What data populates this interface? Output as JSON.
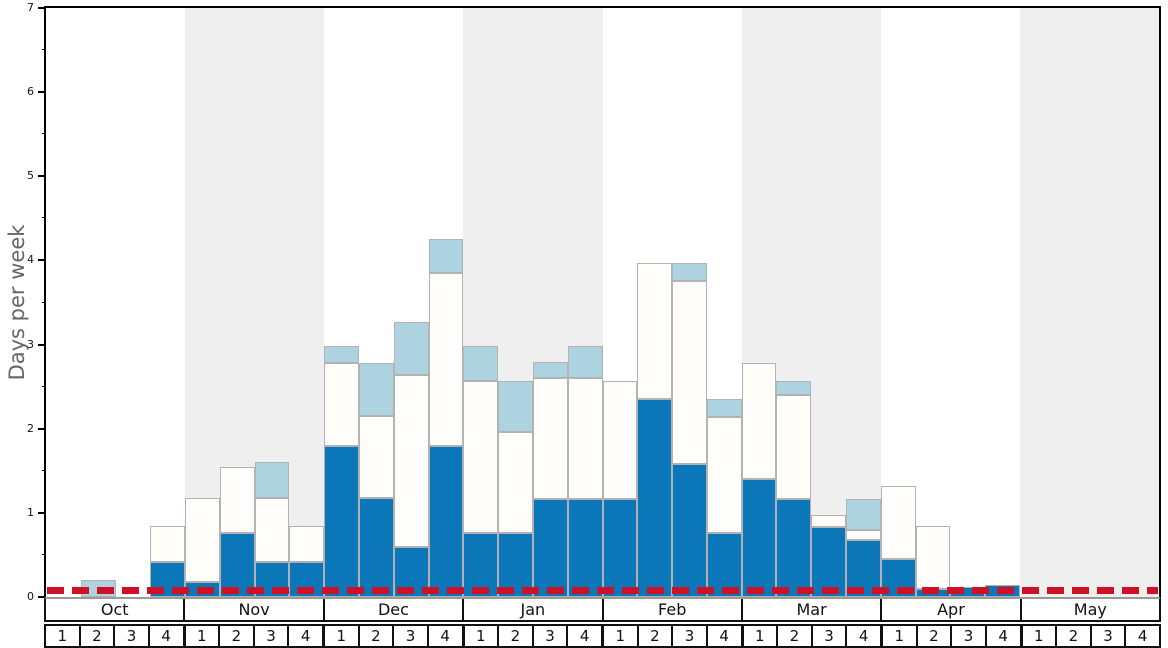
{
  "y_axis": {
    "label": "Days per week",
    "ticks": [
      "0",
      "1",
      "2",
      "3",
      "4",
      "5",
      "6",
      "7"
    ],
    "min": 0,
    "max": 7,
    "minor_tick_step": 0.5
  },
  "months": [
    {
      "label": "Oct",
      "shaded": false,
      "weeks": [
        "1",
        "2",
        "3",
        "4"
      ]
    },
    {
      "label": "Nov",
      "shaded": true,
      "weeks": [
        "1",
        "2",
        "3",
        "4"
      ]
    },
    {
      "label": "Dec",
      "shaded": false,
      "weeks": [
        "1",
        "2",
        "3",
        "4"
      ]
    },
    {
      "label": "Jan",
      "shaded": true,
      "weeks": [
        "1",
        "2",
        "3",
        "4"
      ]
    },
    {
      "label": "Feb",
      "shaded": false,
      "weeks": [
        "1",
        "2",
        "3",
        "4"
      ]
    },
    {
      "label": "Mar",
      "shaded": true,
      "weeks": [
        "1",
        "2",
        "3",
        "4"
      ]
    },
    {
      "label": "Apr",
      "shaded": false,
      "weeks": [
        "1",
        "2",
        "3",
        "4"
      ]
    },
    {
      "label": "May",
      "shaded": true,
      "weeks": [
        "1",
        "2",
        "3",
        "4"
      ]
    }
  ],
  "colors": {
    "dark_blue": "#0b76b8",
    "light_blue": "#aed3e0",
    "bar_white": "#fffefa",
    "band_gray": "#efefef",
    "bar_border": "#b2b2b2",
    "reference_red": "#ce1126",
    "axis_title_gray": "#666666"
  },
  "reference_line": {
    "value": 0.08,
    "style": "dashed",
    "color": "#ce1126"
  },
  "chart_data": {
    "type": "bar",
    "stacked": true,
    "title": "",
    "xlabel": "",
    "ylabel": "Days per week",
    "ylim": [
      0,
      7
    ],
    "grid": false,
    "legend": "none visible",
    "background_bands": "alternate months shaded gray (Nov, Jan, Mar, May)",
    "categories": [
      "Oct-1",
      "Oct-2",
      "Oct-3",
      "Oct-4",
      "Nov-1",
      "Nov-2",
      "Nov-3",
      "Nov-4",
      "Dec-1",
      "Dec-2",
      "Dec-3",
      "Dec-4",
      "Jan-1",
      "Jan-2",
      "Jan-3",
      "Jan-4",
      "Feb-1",
      "Feb-2",
      "Feb-3",
      "Feb-4",
      "Mar-1",
      "Mar-2",
      "Mar-3",
      "Mar-4",
      "Apr-1",
      "Apr-2",
      "Apr-3",
      "Apr-4",
      "May-1",
      "May-2",
      "May-3",
      "May-4"
    ],
    "series": [
      {
        "name": "dark_blue_bottom",
        "color": "#0b76b8",
        "values": [
          0,
          0,
          0,
          0.42,
          0.18,
          0.76,
          0.42,
          0.42,
          1.8,
          1.18,
          0.6,
          1.8,
          0.76,
          0.76,
          1.17,
          1.17,
          1.17,
          2.35,
          1.58,
          0.76,
          1.4,
          1.17,
          0.83,
          0.68,
          0.45,
          0.1,
          0.12,
          0.14,
          0,
          0,
          0,
          0
        ]
      },
      {
        "name": "white_middle",
        "color": "#fffefa",
        "values": [
          0,
          0,
          0,
          0.42,
          1.0,
          0.78,
          0.76,
          0.42,
          0.98,
          0.97,
          2.04,
          2.05,
          1.81,
          1.2,
          1.43,
          1.43,
          1.4,
          1.62,
          2.17,
          1.38,
          1.38,
          1.23,
          0.14,
          0.12,
          0.87,
          0.74,
          0,
          0,
          0,
          0,
          0,
          0
        ]
      },
      {
        "name": "light_blue_top",
        "color": "#aed3e0",
        "values": [
          0,
          0.2,
          0,
          0,
          0,
          0,
          0.42,
          0,
          0.2,
          0.63,
          0.63,
          0.4,
          0.41,
          0.61,
          0.19,
          0.38,
          0,
          0,
          0.22,
          0.21,
          0,
          0.17,
          0,
          0.37,
          0,
          0,
          0,
          0,
          0,
          0,
          0,
          0
        ]
      }
    ]
  }
}
